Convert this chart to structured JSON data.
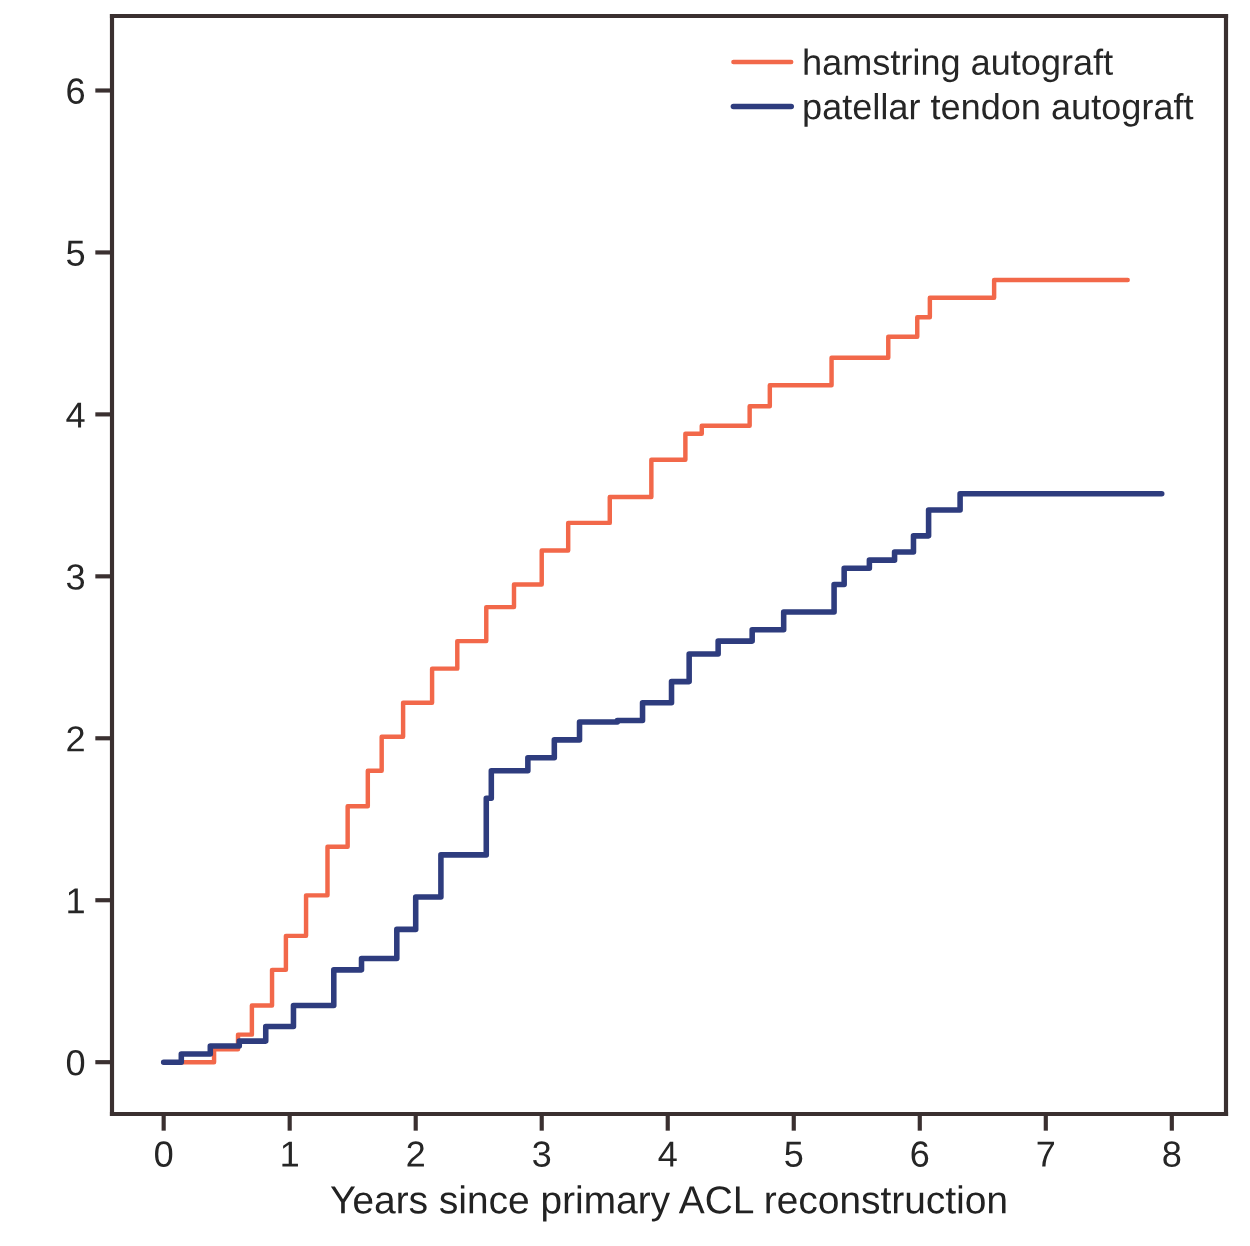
{
  "chart_data": {
    "type": "step",
    "xlabel": "Years since primary ACL reconstruction",
    "xlim": [
      -0.41,
      8.43
    ],
    "ylim": [
      -0.32,
      6.46
    ],
    "xticks": [
      0,
      1,
      2,
      3,
      4,
      5,
      6,
      7,
      8
    ],
    "yticks": [
      0,
      1,
      2,
      3,
      4,
      5,
      6
    ],
    "grid": false,
    "legend": "top right",
    "series": [
      {
        "name": "hamstring autograft",
        "color": "#f2684a",
        "x": [
          0,
          0.4,
          0.59,
          0.7,
          0.86,
          0.97,
          1.13,
          1.3,
          1.46,
          1.62,
          1.73,
          1.9,
          2.13,
          2.33,
          2.56,
          2.78,
          3.0,
          3.21,
          3.54,
          3.87,
          4.14,
          4.27,
          4.65,
          4.81,
          5.3,
          5.75,
          5.98,
          6.08,
          6.59,
          7.65
        ],
        "values": [
          0,
          0.08,
          0.17,
          0.35,
          0.57,
          0.78,
          1.03,
          1.33,
          1.58,
          1.8,
          2.01,
          2.22,
          2.43,
          2.6,
          2.81,
          2.95,
          3.16,
          3.33,
          3.49,
          3.72,
          3.88,
          3.93,
          4.05,
          4.18,
          4.35,
          4.48,
          4.6,
          4.72,
          4.83,
          4.83
        ]
      },
      {
        "name": "patellar tendon autograft",
        "color": "#2e3c7e",
        "x": [
          0,
          0.14,
          0.37,
          0.6,
          0.81,
          1.03,
          1.35,
          1.57,
          1.85,
          2.0,
          2.2,
          2.56,
          2.6,
          2.89,
          3.1,
          3.3,
          3.6,
          3.8,
          4.03,
          4.17,
          4.4,
          4.67,
          4.92,
          5.32,
          5.4,
          5.6,
          5.8,
          5.95,
          6.07,
          6.32,
          7.92
        ],
        "values": [
          0,
          0.05,
          0.1,
          0.13,
          0.22,
          0.35,
          0.57,
          0.64,
          0.82,
          1.02,
          1.28,
          1.63,
          1.8,
          1.88,
          1.99,
          2.1,
          2.11,
          2.22,
          2.35,
          2.52,
          2.6,
          2.67,
          2.78,
          2.95,
          3.05,
          3.1,
          3.15,
          3.25,
          3.41,
          3.51,
          3.51
        ]
      }
    ]
  }
}
